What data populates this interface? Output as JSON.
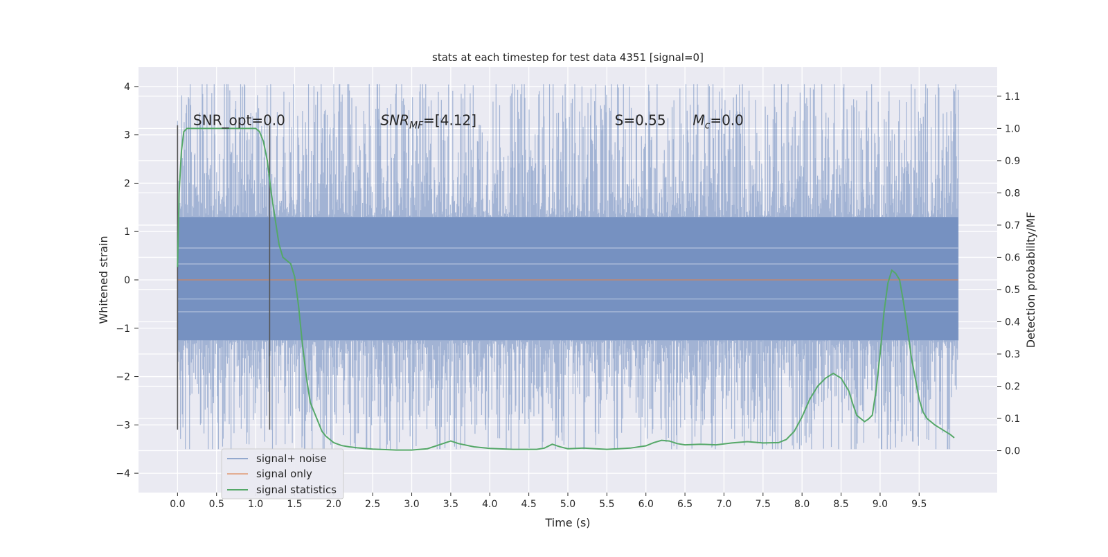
{
  "chart_data": {
    "type": "line",
    "title": "stats at each timestep for test data 4351 [signal=0]",
    "xlabel": "Time (s)",
    "ylabel": "Whitened strain",
    "y2label": "Detection probability/MF",
    "xlim": [
      -0.5,
      10.5
    ],
    "ylim": [
      -4.4,
      4.4
    ],
    "y2lim": [
      -0.13,
      1.19
    ],
    "xticks": [
      0.0,
      0.5,
      1.0,
      1.5,
      2.0,
      2.5,
      3.0,
      3.5,
      4.0,
      4.5,
      5.0,
      5.5,
      6.0,
      6.5,
      7.0,
      7.5,
      8.0,
      8.5,
      9.0,
      9.5
    ],
    "xtick_labels": [
      "0.0",
      "0.5",
      "1.0",
      "1.5",
      "2.0",
      "2.5",
      "3.0",
      "3.5",
      "4.0",
      "4.5",
      "5.0",
      "5.5",
      "6.0",
      "6.5",
      "7.0",
      "7.5",
      "8.0",
      "8.5",
      "9.0",
      "9.5"
    ],
    "yticks": [
      -4,
      -3,
      -2,
      -1,
      0,
      1,
      2,
      3,
      4
    ],
    "ytick_labels": [
      "−4",
      "−3",
      "−2",
      "−1",
      "0",
      "1",
      "2",
      "3",
      "4"
    ],
    "y2ticks": [
      0.0,
      0.1,
      0.2,
      0.3,
      0.4,
      0.5,
      0.6,
      0.7,
      0.8,
      0.9,
      1.0,
      1.1
    ],
    "y2tick_labels": [
      "0.0",
      "0.1",
      "0.2",
      "0.3",
      "0.4",
      "0.5",
      "0.6",
      "0.7",
      "0.8",
      "0.9",
      "1.0",
      "1.1"
    ],
    "grid": true,
    "legend_position": "lower-left",
    "annotations": [
      {
        "text": "SNR_opt=0.0",
        "x": 0.2
      },
      {
        "text": "SNR_MF=[4.12]",
        "x": 2.6
      },
      {
        "text": "S=0.55",
        "x": 5.6
      },
      {
        "text": "M_c=0.0",
        "x": 6.6
      }
    ],
    "vlines": [
      {
        "x": 0.0,
        "y_range": [
          -3.1,
          3.2
        ]
      },
      {
        "x": 1.18,
        "y_range": [
          -3.1,
          3.2
        ]
      }
    ],
    "series": [
      {
        "name": "signal+ noise",
        "color": "#4c72b0",
        "x_range": [
          0.0,
          10.0
        ],
        "envelope_upper": 1.3,
        "envelope_lower": -1.25,
        "spike_range": [
          -3.5,
          4.05
        ]
      },
      {
        "name": "signal only",
        "color": "#dd8452",
        "x": [
          0.0,
          10.0
        ],
        "y": [
          0.0,
          0.0
        ]
      },
      {
        "name": "signal statistics",
        "color": "#55a868",
        "axis": "right",
        "x": [
          0.0,
          0.02,
          0.05,
          0.08,
          0.12,
          0.16,
          0.2,
          0.3,
          0.4,
          0.5,
          0.6,
          0.7,
          0.8,
          0.9,
          1.0,
          1.05,
          1.1,
          1.15,
          1.2,
          1.25,
          1.3,
          1.35,
          1.4,
          1.45,
          1.5,
          1.55,
          1.6,
          1.65,
          1.7,
          1.75,
          1.8,
          1.85,
          1.9,
          1.95,
          2.0,
          2.1,
          2.2,
          2.3,
          2.5,
          2.8,
          3.0,
          3.2,
          3.35,
          3.5,
          3.6,
          3.8,
          4.0,
          4.3,
          4.6,
          4.7,
          4.8,
          4.9,
          5.0,
          5.2,
          5.5,
          5.8,
          6.0,
          6.1,
          6.2,
          6.3,
          6.4,
          6.5,
          6.7,
          6.9,
          7.1,
          7.3,
          7.5,
          7.7,
          7.8,
          7.9,
          8.0,
          8.1,
          8.2,
          8.3,
          8.4,
          8.5,
          8.6,
          8.65,
          8.7,
          8.75,
          8.8,
          8.85,
          8.9,
          8.95,
          9.0,
          9.05,
          9.1,
          9.15,
          9.2,
          9.25,
          9.3,
          9.35,
          9.4,
          9.5,
          9.55,
          9.6,
          9.7,
          9.8,
          9.9,
          9.95
        ],
        "y": [
          0.57,
          0.8,
          0.93,
          0.99,
          1.0,
          1.0,
          1.0,
          1.0,
          1.0,
          1.0,
          1.0,
          1.0,
          1.0,
          1.0,
          1.0,
          0.99,
          0.96,
          0.9,
          0.8,
          0.72,
          0.64,
          0.6,
          0.59,
          0.58,
          0.54,
          0.45,
          0.33,
          0.23,
          0.15,
          0.12,
          0.09,
          0.06,
          0.045,
          0.035,
          0.025,
          0.016,
          0.012,
          0.009,
          0.005,
          0.002,
          0.002,
          0.006,
          0.018,
          0.03,
          0.022,
          0.012,
          0.007,
          0.004,
          0.004,
          0.008,
          0.02,
          0.012,
          0.006,
          0.008,
          0.004,
          0.008,
          0.015,
          0.025,
          0.032,
          0.03,
          0.022,
          0.018,
          0.02,
          0.018,
          0.024,
          0.028,
          0.024,
          0.025,
          0.035,
          0.06,
          0.105,
          0.16,
          0.2,
          0.225,
          0.24,
          0.225,
          0.185,
          0.145,
          0.11,
          0.1,
          0.09,
          0.098,
          0.11,
          0.19,
          0.3,
          0.43,
          0.52,
          0.56,
          0.55,
          0.53,
          0.46,
          0.38,
          0.29,
          0.16,
          0.12,
          0.1,
          0.08,
          0.065,
          0.05,
          0.04
        ]
      }
    ]
  }
}
